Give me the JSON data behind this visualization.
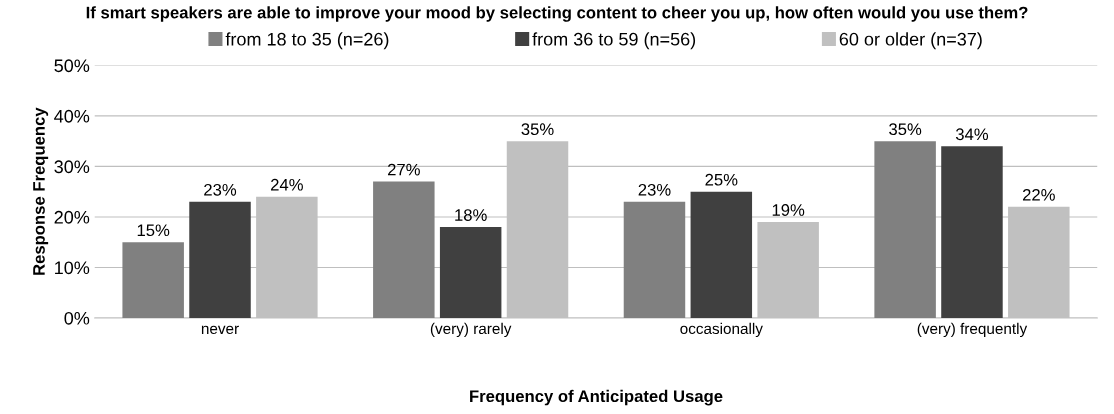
{
  "chart_data": {
    "type": "bar",
    "title": "If smart speakers are able to improve your mood by selecting content to cheer you up, how often would you use them?",
    "xlabel": "Frequency of Anticipated Usage",
    "ylabel": "Response Frequency",
    "categories": [
      "never",
      "(very) rarely",
      "occasionally",
      "(very) frequently"
    ],
    "series": [
      {
        "name": "from 18 to 35 (n=26)",
        "color": "#808080",
        "values": [
          15,
          27,
          23,
          35
        ],
        "value_labels": [
          "15%",
          "27%",
          "23%",
          "35%"
        ]
      },
      {
        "name": "from 36 to 59 (n=56)",
        "color": "#404040",
        "values": [
          23,
          18,
          25,
          34
        ],
        "value_labels": [
          "23%",
          "18%",
          "25%",
          "34%"
        ]
      },
      {
        "name": "60 or older (n=37)",
        "color": "#c0c0c0",
        "values": [
          24,
          35,
          19,
          22
        ],
        "value_labels": [
          "24%",
          "35%",
          "19%",
          "22%"
        ]
      }
    ],
    "ylim": [
      0,
      50
    ],
    "yticks": [
      {
        "value": 0,
        "label": "0%"
      },
      {
        "value": 10,
        "label": "10%"
      },
      {
        "value": 20,
        "label": "20%"
      },
      {
        "value": 30,
        "label": "30%"
      },
      {
        "value": 40,
        "label": "40%"
      },
      {
        "value": 50,
        "label": "50%"
      }
    ],
    "grid": "y",
    "legend": "top"
  }
}
